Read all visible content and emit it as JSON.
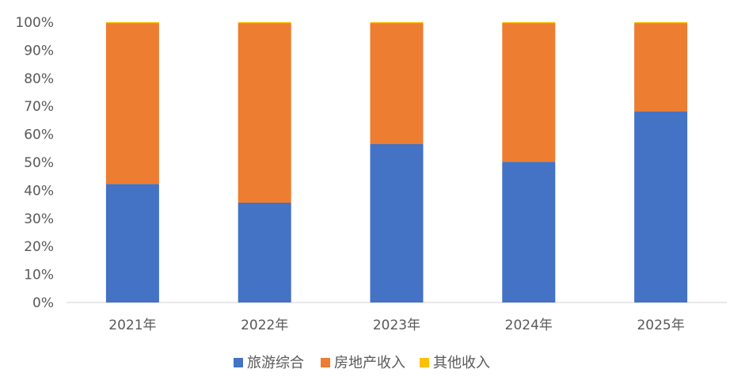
{
  "chart_data": {
    "type": "bar",
    "stacked": true,
    "categories": [
      "2021年",
      "2022年",
      "2023年",
      "2024年",
      "2025年"
    ],
    "series": [
      {
        "name": "旅游综合",
        "color": "#4472C4",
        "values": [
          42.3,
          35.6,
          56.5,
          50.2,
          68.2
        ]
      },
      {
        "name": "房地产收入",
        "color": "#ED7D31",
        "values": [
          57.4,
          64.1,
          43.2,
          49.5,
          31.5
        ]
      },
      {
        "name": "其他收入",
        "color": "#FFC000",
        "values": [
          0.3,
          0.3,
          0.3,
          0.3,
          0.3
        ]
      }
    ],
    "ylim": [
      0,
      100
    ],
    "yticks": [
      "0%",
      "10%",
      "20%",
      "30%",
      "40%",
      "50%",
      "60%",
      "70%",
      "80%",
      "90%",
      "100%"
    ],
    "grid": false,
    "legend_position": "bottom"
  }
}
